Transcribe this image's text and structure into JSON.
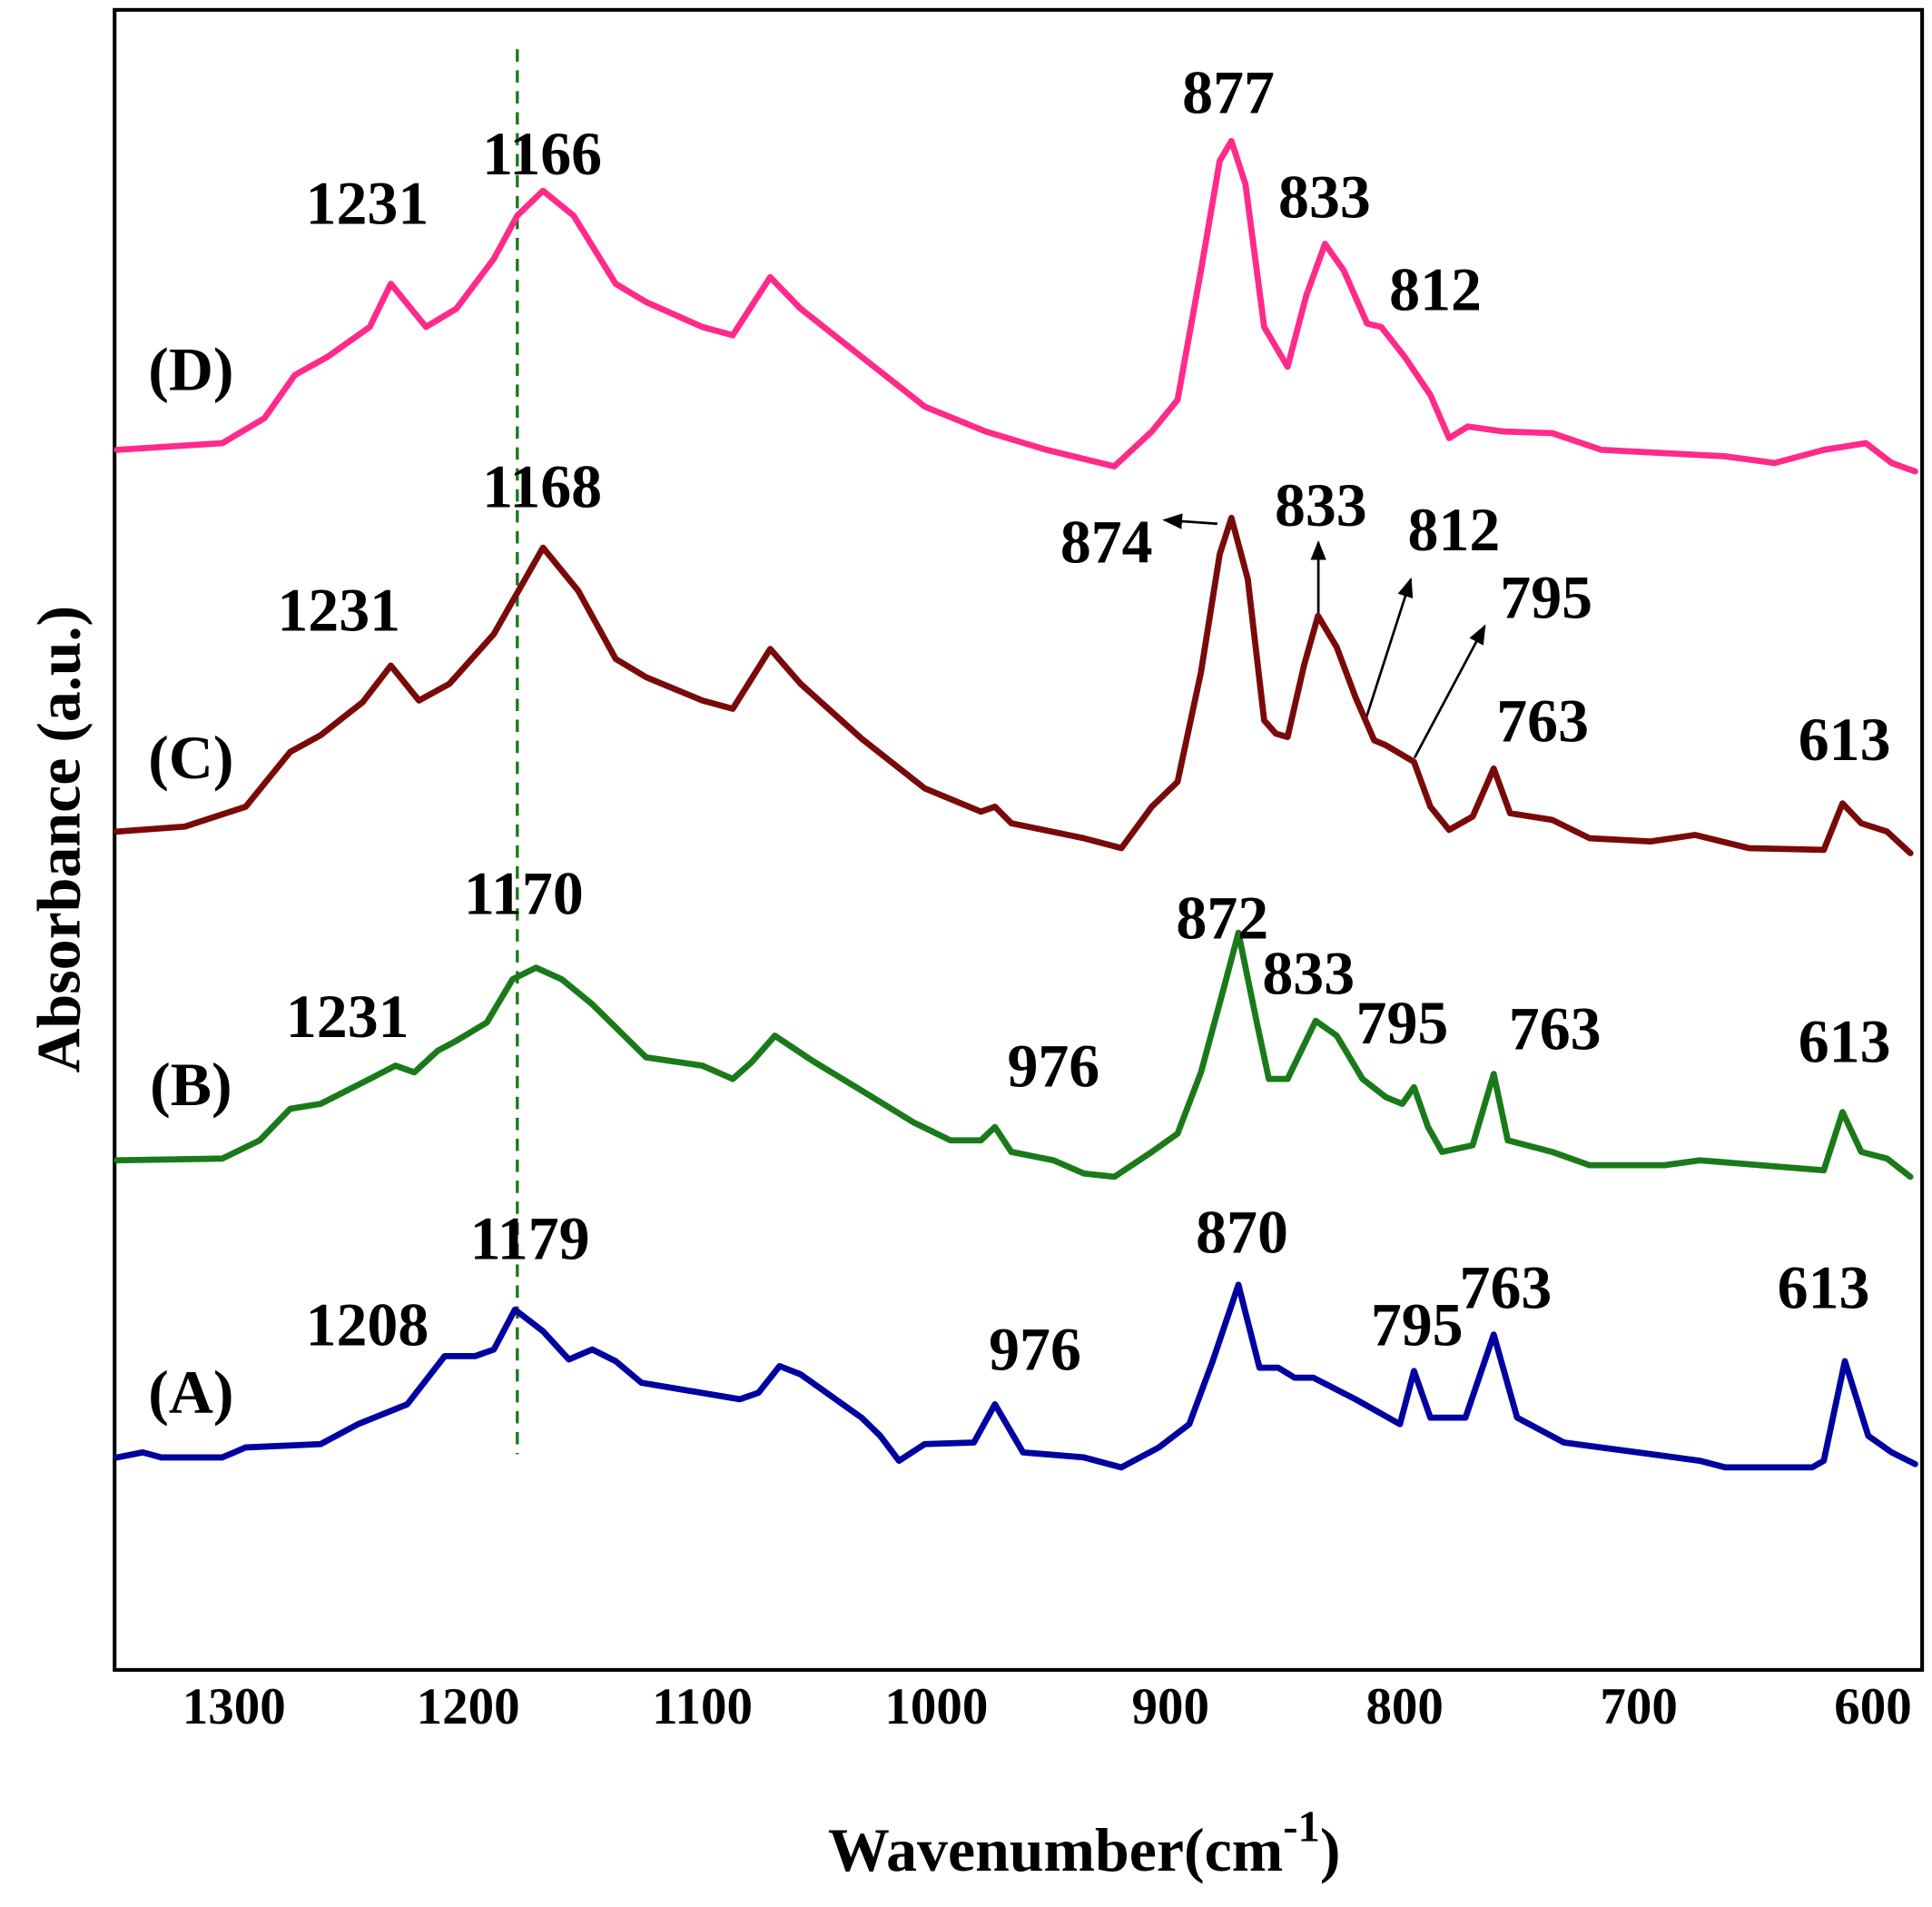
{
  "chart_data": {
    "type": "line",
    "xlabel": [
      "Wavenumber(cm",
      "-1",
      ")"
    ],
    "ylabel": "Absorbance (a.u.)",
    "xlim": [
      1351,
      579
    ],
    "ylim": [
      0,
      100
    ],
    "xticks": [
      1300,
      1200,
      1100,
      1000,
      900,
      800,
      700,
      600
    ],
    "reference_line": {
      "x": 1179,
      "color": "#1a7a1a",
      "style": "dashed"
    },
    "series": [
      {
        "name": "(A)",
        "color": "#0000a0",
        "x": [
          1350,
          1339,
          1331,
          1305,
          1295,
          1263,
          1247,
          1226,
          1210,
          1197,
          1189,
          1180,
          1168,
          1157,
          1147,
          1137,
          1126,
          1084,
          1076,
          1067,
          1058,
          1032,
          1024,
          1016,
          1005,
          984,
          975,
          963,
          937,
          921,
          905,
          892,
          882,
          871,
          862,
          854,
          847,
          839,
          821,
          802,
          796,
          789,
          774,
          762,
          752,
          732,
          695,
          674,
          663,
          626,
          621,
          612,
          602,
          592,
          582
        ],
        "values": [
          12.8,
          13.1,
          12.8,
          12.8,
          13.4,
          13.6,
          14.8,
          16.0,
          18.9,
          18.9,
          19.3,
          21.7,
          20.4,
          18.7,
          19.3,
          18.6,
          17.3,
          16.3,
          16.7,
          18.3,
          17.8,
          15.2,
          14.1,
          12.6,
          13.6,
          13.7,
          16.0,
          13.1,
          12.8,
          12.2,
          13.4,
          14.8,
          18.6,
          23.2,
          18.2,
          18.2,
          17.6,
          17.6,
          16.3,
          14.8,
          18.0,
          15.2,
          15.2,
          20.2,
          15.2,
          13.7,
          13.0,
          12.6,
          12.2,
          12.2,
          12.6,
          18.6,
          14.1,
          13.1,
          12.4
        ],
        "peak_labels": [
          "1179",
          "1208",
          "870",
          "976",
          "795",
          "763",
          "613"
        ]
      },
      {
        "name": "(B)",
        "color": "#1a7a1a",
        "x": [
          1350,
          1305,
          1289,
          1276,
          1263,
          1242,
          1231,
          1223,
          1213,
          1205,
          1192,
          1181,
          1171,
          1160,
          1147,
          1124,
          1100,
          1087,
          1079,
          1069,
          1053,
          1032,
          1010,
          994,
          981,
          975,
          968,
          950,
          937,
          924,
          908,
          897,
          887,
          877,
          871,
          863,
          858,
          850,
          838,
          829,
          818,
          808,
          801,
          796,
          790,
          784,
          771,
          762,
          756,
          737,
          721,
          689,
          674,
          621,
          613,
          605,
          594,
          584
        ],
        "values": [
          30.7,
          30.8,
          31.9,
          33.8,
          34.1,
          35.6,
          36.4,
          36.0,
          37.3,
          37.9,
          39.0,
          41.6,
          42.3,
          41.6,
          40.1,
          36.9,
          36.4,
          35.6,
          36.6,
          38.2,
          36.7,
          34.9,
          33.0,
          31.9,
          31.9,
          32.7,
          31.2,
          30.7,
          29.9,
          29.7,
          31.2,
          32.3,
          36.0,
          41.2,
          44.4,
          38.9,
          35.6,
          35.6,
          39.1,
          38.2,
          35.6,
          34.5,
          34.1,
          35.1,
          32.7,
          31.2,
          31.6,
          35.9,
          31.9,
          31.2,
          30.4,
          30.4,
          30.7,
          30.1,
          33.6,
          31.2,
          30.8,
          29.7
        ],
        "peak_labels": [
          "1170",
          "1231",
          "872",
          "833",
          "976",
          "795",
          "763",
          "613"
        ]
      },
      {
        "name": "(C)",
        "color": "#7a0a0a",
        "x": [
          1350,
          1321,
          1295,
          1276,
          1263,
          1245,
          1233,
          1221,
          1208,
          1189,
          1168,
          1153,
          1137,
          1124,
          1100,
          1087,
          1071,
          1058,
          1032,
          1005,
          981,
          975,
          968,
          937,
          921,
          908,
          897,
          887,
          879,
          874,
          867,
          860,
          855,
          850,
          843,
          837,
          829,
          821,
          813,
          808,
          796,
          789,
          781,
          771,
          762,
          755,
          737,
          721,
          695,
          676,
          653,
          621,
          613,
          605,
          594,
          584
        ],
        "values": [
          50.5,
          50.8,
          52.0,
          55.3,
          56.3,
          58.3,
          60.5,
          58.4,
          59.4,
          62.4,
          67.6,
          65.0,
          60.9,
          59.8,
          58.4,
          57.9,
          61.5,
          59.4,
          56.1,
          53.1,
          51.7,
          52.0,
          51.0,
          50.1,
          49.5,
          52.0,
          53.5,
          60.1,
          67.2,
          69.4,
          65.7,
          57.2,
          56.4,
          56.2,
          60.5,
          63.5,
          61.6,
          58.6,
          56.0,
          55.7,
          54.7,
          52.0,
          50.6,
          51.4,
          54.3,
          51.6,
          51.2,
          50.1,
          49.9,
          50.3,
          49.5,
          49.4,
          52.2,
          51.0,
          50.5,
          49.2
        ],
        "peak_labels": [
          "1168",
          "1231",
          "874",
          "833",
          "812",
          "795",
          "763",
          "613"
        ]
      },
      {
        "name": "(D)",
        "color": "#ff2a8a",
        "x": [
          1350,
          1305,
          1287,
          1274,
          1260,
          1242,
          1233,
          1218,
          1205,
          1189,
          1179,
          1168,
          1155,
          1137,
          1124,
          1100,
          1087,
          1071,
          1058,
          1032,
          1005,
          979,
          953,
          924,
          908,
          897,
          887,
          879,
          874,
          868,
          860,
          850,
          842,
          834,
          826,
          816,
          810,
          800,
          789,
          781,
          773,
          758,
          737,
          716,
          663,
          642,
          621,
          603,
          592,
          582
        ],
        "values": [
          73.5,
          73.9,
          75.4,
          78.0,
          79.1,
          80.9,
          83.5,
          80.9,
          82.0,
          85.0,
          87.6,
          89.1,
          87.6,
          83.5,
          82.4,
          80.9,
          80.4,
          83.9,
          82.0,
          79.1,
          76.1,
          74.6,
          73.5,
          72.5,
          74.6,
          76.5,
          84.3,
          90.9,
          92.1,
          89.5,
          80.9,
          78.5,
          82.8,
          85.9,
          84.3,
          81.1,
          80.9,
          79.1,
          76.8,
          74.2,
          74.9,
          74.6,
          74.5,
          73.5,
          73.1,
          72.7,
          73.5,
          73.9,
          72.7,
          72.2
        ],
        "peak_labels": [
          "1231",
          "1166",
          "877",
          "833",
          "812"
        ]
      }
    ]
  }
}
